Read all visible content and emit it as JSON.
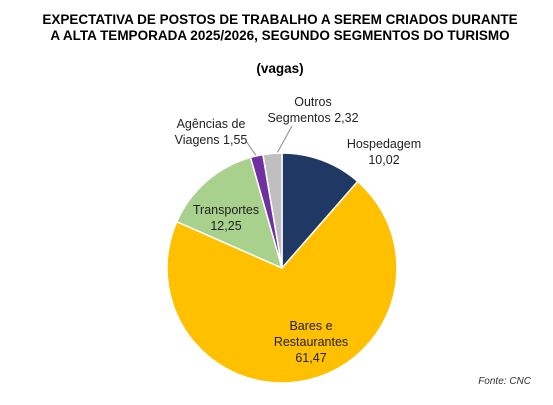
{
  "chart_data": {
    "type": "pie",
    "title": "EXPECTATIVA DE POSTOS DE TRABALHO A SEREM CRIADOS DURANTE A ALTA TEMPORADA 2025/2026, SEGUNDO SEGMENTOS DO TURISMO",
    "subtitle": "(vagas)",
    "categories": [
      "Hospedagem",
      "Bares e Restaurantes",
      "Transportes",
      "Agências de Viagens",
      "Outros Segmentos"
    ],
    "values": [
      10.02,
      61.47,
      12.25,
      1.55,
      2.32
    ],
    "value_labels": [
      "10,02",
      "61,47",
      "12,25",
      "1,55",
      "2,32"
    ],
    "colors": [
      "#1f3864",
      "#ffc000",
      "#a9d18e",
      "#7030a0",
      "#bfbfbf"
    ],
    "source": "Fonte: CNC"
  }
}
